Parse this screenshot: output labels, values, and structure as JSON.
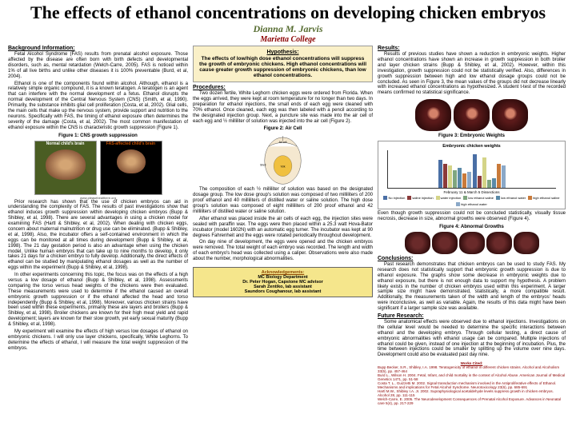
{
  "title": "The effects of ethanol concentrations on developing chicken embryos",
  "author": "Dianna M. Jarvis",
  "affil": "Marietta College",
  "left": {
    "bg_head": "Background Information:",
    "bg_p1": "Fetal Alcohol Syndrome (FAS) results from prenatal alcohol exposure. Those affected by the disease are often born with birth defects and developmental disorders, such as, mental retardation (Welch-Carre, 2005). FAS is noticed within 1% of all live births and unlike other diseases it is 100% preventable (Burd, et al, 2004).",
    "bg_p2": "Ethanol is one of the components found within alcohol. Although, ethanol is a relatively simple organic compound, it is a known teratogen. A teratogen is an agent that can interfere with the normal development of a fetus. Ethanol disrupts the normal development of the Central Nervous System (CNS) (Smith, et al, 1990). Primarily, the substance inhibits glial cell proliferation (Costa, et al, 2002). Glial cells, the main cells that make up the nervous system, provide support and nutrition to the neurons. Specifically with FAS, the timing of ethanol exposure often determines the severity of the damage (Costa, et al, 2002). The most common manifestation of ethanol exposure within the CNS is characteristic growth suppression (Figure 1).",
    "fig1_cap": "Figure 1: CNS growth suppression",
    "brain_l": "Normal child's brain",
    "brain_r": "FAS-affected child's brain",
    "src": "www.pleasebealthere.org",
    "bg_p3": "Prior research has shown that the use of chicken embryos can aid in understanding the complexity of FAS. The results of past investigations show that ethanol induces growth suppression within developing chicken embryos (Bupp & Shibley, et al, 1998). There are several advantages in using a chicken model for examining FAS (Hartl & Shibley, et al, 2002). When dealing with chicken eggs, concern about maternal malnutrition or drug use can be eliminated. (Bupp & Shibley, et al, 1998). Also, the incubator offers a self-contained environment in which the eggs can be monitored at all times during development (Bupp & Shibley, et al, 1998). The 21 day gestation period is also an advantage when using the chicken model. Unlike human embryos that can take up to nine months to develop, it only takes 21 days for a chicken embryo to fully develop. Additionally, the direct effects of ethanol can be studied by manipulating ethanol dosages as well as the number of eggs within the experiment (Bupp & Shibley, et al, 1998).",
    "bg_p4": "In other experiments concerning this topic, the focus was on the effects of a high versus a low dosage of ethanol (Bupp & Shibley, et al, 1998). Assessments comparing the torso versus head weights of the chickens were then evaluated. These measurements were used to determine if the ethanol caused an overall embryonic growth suppression or if the ethanol affected the head and torso independently (Bupp & Shibley, et al, 1998). Moreover, various chicken strains have been used within these experiments, primarily these are layers and broilers (Bupp & Shibley, et al, 1998). Broiler chickens are known for their high meat yield and rapid development; layers are known for their slow growth, yet early sexual maturity (Bupp & Shibley, et al, 1998).",
    "bg_p5": "My experiment will examine the effects of high versus low dosages of ethanol on embryonic chickens. I will only use layer chickens, specifically, White Leghorns. To determine the effects of ethanol, I will measure the total weight suppression of the embryos."
  },
  "mid": {
    "hyp_head": "Hypothesis:",
    "hyp_text": "The effects of low/high dose ethanol concentrations will suppress the growth of embryonic chickens. High ethanol concentrations will cause greater growth suppression of embryonic chickens, than low ethanol concentrations.",
    "proc_head": "Procedures:",
    "proc_p1": "Two dozen fertile, White Leghorn chicken eggs were ordered from Florida. When the eggs arrived, they were kept at room temperature for no longer than two days. In preparation for ethanol injections, the small ends of each egg were cleaned with 70% ethanol. Once cleaned, each egg was then labeled with a pencil according to the designated injection group. Next, a puncture site was made into the air cell of each egg and ½ milliliter of solution was injected into the air cell (Figure 2).",
    "fig2_cap": "Figure 2: Air Cell",
    "proc_p2": "The composition of each ½ milliliter of solution was based on the designated dosage group. The low dose group's solution was composed of two milliliters of 200 proof ethanol and 40 milliliters of distilled water or saline solution. The high dose group's solution was composed of eight milliliters of 200 proof ethanol and 42 milliliters of distilled water or saline solution.",
    "proc_p3": "After ethanol was placed inside the air cells of each egg, the injection sites were sealed with paraffin wax. The eggs were then placed within a 25.3 watt Hova-Bator incubator (model 1602N) with an automatic egg turner. The incubator was kept at 90 degrees Fahrenheit and the eggs were rotated periodically throughout development.",
    "proc_p4": "On day nine of development, the eggs were opened and the chicken embryos were removed. The total weight of each embryo was recorded. The length and width of each embryo's head was collected using a caliper. Observations were also made about the number, morphological abnormalities.",
    "ack_head": "Acknowledgements:",
    "ack_lines": [
      "MC Biology Department",
      "Dr. Peter Hogan, Capstone MC advisor",
      "Sarah Zentiko, lab assistant",
      "Saundors Coughanour, lab assistant"
    ]
  },
  "right": {
    "res_head": "Results:",
    "res_p1": "Results of previous studies have shown a reduction in embryonic weights. Higher ethanol concentrations have shown an increase in growth suppression in both broiler and layer chicken strains (Bupp & Shibley, et al, 2002). However, within this investigation, growth suppression could not be statistically verified. Also, differences in growth suppression between high and low ethanol dosage groups could not be concluded. As seen in Figure 3, the mean values of the groups did not decrease linearly with increased ethanol concentrations as hypothesized. A student t-test of the recorded means confirmed no statistical significance.",
    "fig3_cap": "Figure 3: Embryonic Weights",
    "chart": {
      "title": "Embryonic chicken weights",
      "xlabel": "February 11 & March 5 Dissections",
      "series": [
        {
          "label": "No injection",
          "color": "#4a6fa5",
          "vals": [
            35,
            42
          ]
        },
        {
          "label": "saline injection",
          "color": "#8b3a3a",
          "vals": [
            30,
            15
          ]
        },
        {
          "label": "water injection",
          "color": "#d4d488",
          "vals": [
            28,
            38
          ]
        },
        {
          "label": "low ethanol saline",
          "color": "#7fa67f",
          "vals": [
            22,
            10
          ]
        },
        {
          "label": "low ethanol water",
          "color": "#5a8aa8",
          "vals": [
            25,
            12
          ]
        },
        {
          "label": "high ethanol saline",
          "color": "#c97a3a",
          "vals": [
            18,
            30
          ]
        },
        {
          "label": "high ethanol water",
          "color": "#8aa8c8",
          "vals": [
            20,
            28
          ]
        }
      ],
      "ymax": 48
    },
    "res_p2": "Even though growth suppression could not be concluded statistically, visually tissue necrosis, decrease in size, abnormal growths were observed (Figure 4).",
    "fig4_cap": "Figure 4: Abnormal Growths",
    "conc_head": "Conclusions:",
    "conc_p1": "Past research demonstrates that chicken embryos can be used to study FAS. My research does not statistically support that embryonic growth suppression is due to ethanol exposure. The graphs show some decrease in embryonic weights due to ethanol exposure, but there is not enough data to support my hypothesis. A problem likely exists in the number of chicken embryos used within this experiment. A larger sample size might have demonstrated, statistically, a more compatible result. Additionally, the measurements taken of the width and length of the embryos' heads were inconclusive, as well as variable. Again, the results of this data might have been significant if a larger sample size was available.",
    "fut_head": "Future Research:",
    "fut_p1": "Some anatomical effects were observed due to ethanol injections. Investigations on the cellular level would be needed to determine the specific interactions between ethanol and the developing embryo. Through cellular testing, a direct cause of embryonic abnormalities with ethanol usage can be compared. Multiple injections of ethanol could be given, instead of one injection at the beginning of incubation. Plus, the time between injections could be smaller by splitting up the volume over nine days. Development could also be evaluated past day nine.",
    "works_head": "Works Cited:",
    "works": [
      "Bupp Becker, S.R., Shibley, I.A. 1998. Teratogenicity of ethanol in different chicken strains. Alcohol and Alcoholism 33(5), pp. 457-464",
      "Burd L., Wilson H. 2004. Fetal, Infant, and child mortality in the context of Alcohol Abuse. American Journal of Medical Genetics 1471, pp. 51-58",
      "Costa T. L., Guizzetti M. 2002. Signal transduction mechanism involved in the Antiproliferative effects of Ethanol. Mechanisms and implications for Fetal Alcohol Syndrome. Neurotoxicology 23(6), pp. 685-691",
      "Hartl M.W., Shibley I.A. Jr. 2002. Supraphysiological acetaldehyde levels suppress growth in chicken embryos. Alcohol 28, pp. 111-115",
      "Welch-Carre, E. 2005. The Neurodevelopment Consequences of Prenatal Alcohol Exposure. Advances in Neonatal care 5(4), pp. 217-229"
    ]
  }
}
